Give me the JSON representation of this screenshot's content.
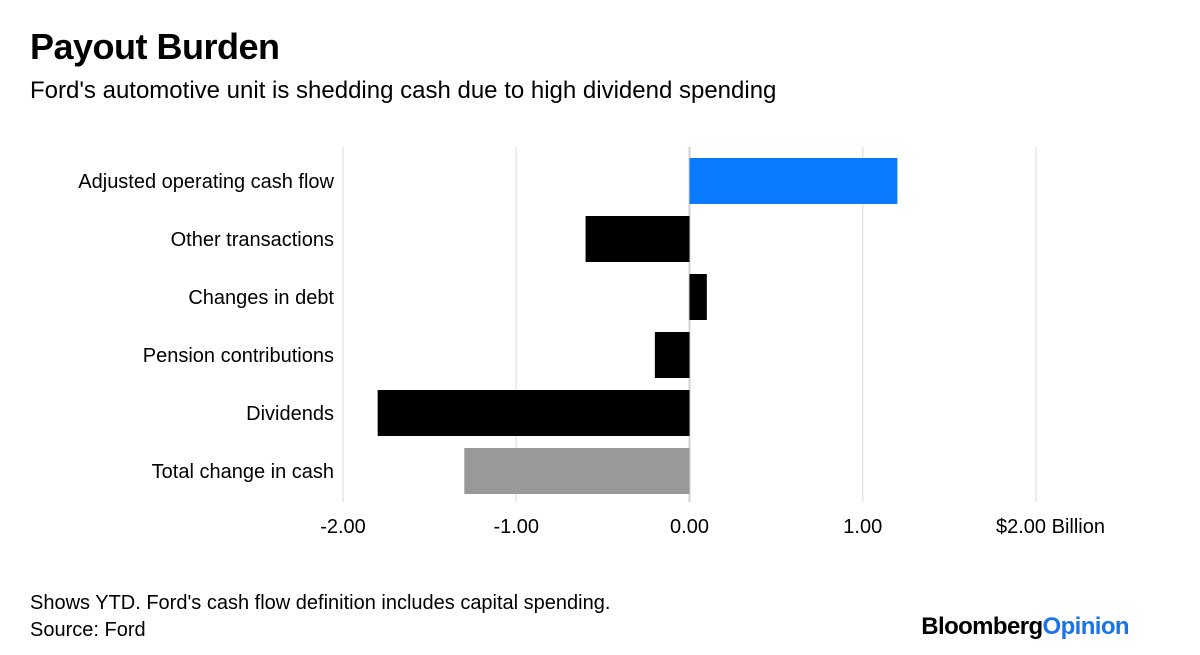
{
  "header": {
    "title": "Payout Burden",
    "subtitle": "Ford's automotive unit is shedding cash due to high dividend spending"
  },
  "chart_data": {
    "type": "bar",
    "orientation": "horizontal",
    "title": "Payout Burden",
    "subtitle": "Ford's automotive unit is shedding cash due to high dividend spending",
    "categories": [
      "Adjusted operating cash flow",
      "Other transactions",
      "Changes in debt",
      "Pension contributions",
      "Dividends",
      "Total change in cash"
    ],
    "values": [
      1.2,
      -0.6,
      0.1,
      -0.2,
      -1.8,
      -1.3
    ],
    "bar_colors": [
      "#0a7bff",
      "#000000",
      "#000000",
      "#000000",
      "#000000",
      "#999999"
    ],
    "xlim": [
      -2.0,
      2.0
    ],
    "xticks": [
      -2,
      -1,
      0,
      1,
      2
    ],
    "xtick_labels": [
      "-2.00",
      "-1.00",
      "0.00",
      "1.00",
      "$2.00 Billion"
    ],
    "xlabel": "",
    "ylabel": "",
    "grid": true
  },
  "footer": {
    "note": "Shows YTD. Ford's cash flow definition includes capital spending.",
    "source": "Source: Ford",
    "brand_part1": "Bloomberg",
    "brand_part2": "Opinion"
  },
  "colors": {
    "grid": "#e6e6e6",
    "zero_line": "#cfcfcf",
    "brand_accent": "#1a73e8"
  }
}
